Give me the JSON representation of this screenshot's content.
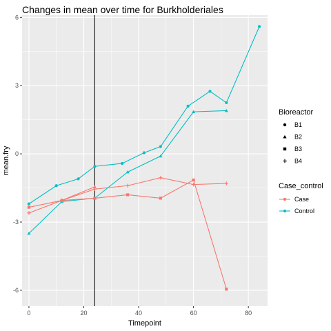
{
  "chart_data": {
    "type": "line",
    "title": "Changes in mean over time for  Burkholderiales",
    "xlabel": "Timepoint",
    "ylabel": "mean.fry",
    "xlim": [
      -2.5,
      87
    ],
    "ylim": [
      -6.7,
      6.1
    ],
    "xticks": [
      0,
      20,
      40,
      60,
      80
    ],
    "yticks": [
      -6,
      -3,
      0,
      3,
      6
    ],
    "vline": 24,
    "grid": true,
    "colors": {
      "Case": "#F8766D",
      "Control": "#00BFC4",
      "panel_bg": "#EBEBEB",
      "grid": "#FFFFFF",
      "vline": "#000000"
    },
    "legend": {
      "position": "right",
      "shape_title": "Bioreactor",
      "shapes": [
        {
          "label": "B1",
          "shape": "circle"
        },
        {
          "label": "B2",
          "shape": "triangle"
        },
        {
          "label": "B3",
          "shape": "square"
        },
        {
          "label": "B4",
          "shape": "plus"
        }
      ],
      "color_title": "Case_control",
      "colors": [
        {
          "label": "Case",
          "color": "#F8766D"
        },
        {
          "label": "Control",
          "color": "#00BFC4"
        }
      ]
    },
    "series": [
      {
        "group": "Control",
        "shape": "circle",
        "points": [
          [
            0,
            -2.2
          ],
          [
            10,
            -1.4
          ],
          [
            18,
            -1.1
          ],
          [
            24,
            -0.55
          ],
          [
            34,
            -0.42
          ],
          [
            42,
            0.05
          ],
          [
            48,
            0.32
          ],
          [
            58,
            2.1
          ],
          [
            66,
            2.75
          ],
          [
            72,
            2.25
          ],
          [
            84,
            5.6
          ]
        ]
      },
      {
        "group": "Control",
        "shape": "triangle",
        "points": [
          [
            0,
            -3.5
          ],
          [
            12,
            -2.1
          ],
          [
            24,
            -1.95
          ],
          [
            36,
            -0.8
          ],
          [
            48,
            -0.1
          ],
          [
            60,
            1.85
          ],
          [
            72,
            1.9
          ]
        ]
      },
      {
        "group": "Case",
        "shape": "square",
        "points": [
          [
            0,
            -2.35
          ],
          [
            12,
            -2.05
          ],
          [
            24,
            -1.95
          ],
          [
            36,
            -1.8
          ],
          [
            48,
            -1.95
          ],
          [
            60,
            -1.15
          ],
          [
            72,
            -5.95
          ]
        ]
      },
      {
        "group": "Case",
        "shape": "plus",
        "points": [
          [
            0,
            -2.6
          ],
          [
            12,
            -2.05
          ],
          [
            24,
            -1.55
          ],
          [
            36,
            -1.4
          ],
          [
            48,
            -1.05
          ],
          [
            60,
            -1.35
          ],
          [
            72,
            -1.3
          ]
        ]
      },
      {
        "group": "Case",
        "shape": "triangle",
        "points": [
          [
            12,
            -2.05
          ],
          [
            24,
            -1.45
          ]
        ]
      }
    ]
  }
}
